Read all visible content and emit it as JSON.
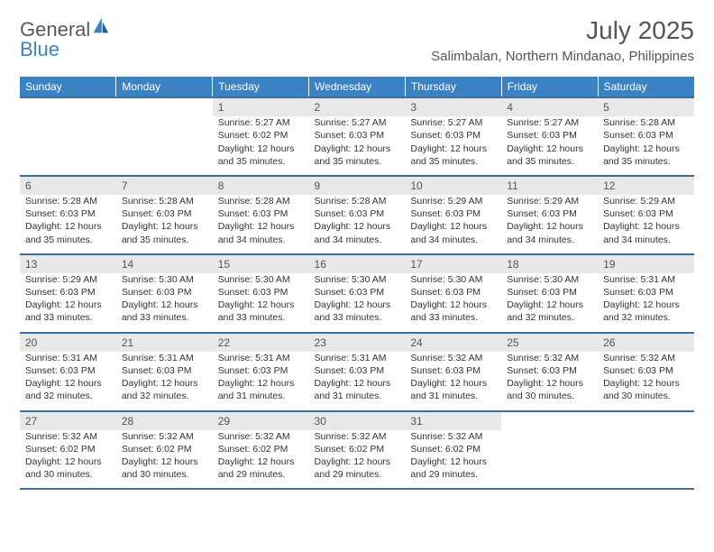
{
  "logo": {
    "text_general": "General",
    "text_blue": "Blue"
  },
  "title": "July 2025",
  "subtitle": "Salimbalan, Northern Mindanao, Philippines",
  "colors": {
    "header_bg": "#3b82c4",
    "header_text": "#ffffff",
    "daynum_bg": "#e8e8e8",
    "row_border": "#3b6fa0",
    "text": "#333333",
    "title_text": "#555555"
  },
  "day_headers": [
    "Sunday",
    "Monday",
    "Tuesday",
    "Wednesday",
    "Thursday",
    "Friday",
    "Saturday"
  ],
  "weeks": [
    [
      null,
      null,
      {
        "num": "1",
        "sunrise": "Sunrise: 5:27 AM",
        "sunset": "Sunset: 6:02 PM",
        "daylight": "Daylight: 12 hours and 35 minutes."
      },
      {
        "num": "2",
        "sunrise": "Sunrise: 5:27 AM",
        "sunset": "Sunset: 6:03 PM",
        "daylight": "Daylight: 12 hours and 35 minutes."
      },
      {
        "num": "3",
        "sunrise": "Sunrise: 5:27 AM",
        "sunset": "Sunset: 6:03 PM",
        "daylight": "Daylight: 12 hours and 35 minutes."
      },
      {
        "num": "4",
        "sunrise": "Sunrise: 5:27 AM",
        "sunset": "Sunset: 6:03 PM",
        "daylight": "Daylight: 12 hours and 35 minutes."
      },
      {
        "num": "5",
        "sunrise": "Sunrise: 5:28 AM",
        "sunset": "Sunset: 6:03 PM",
        "daylight": "Daylight: 12 hours and 35 minutes."
      }
    ],
    [
      {
        "num": "6",
        "sunrise": "Sunrise: 5:28 AM",
        "sunset": "Sunset: 6:03 PM",
        "daylight": "Daylight: 12 hours and 35 minutes."
      },
      {
        "num": "7",
        "sunrise": "Sunrise: 5:28 AM",
        "sunset": "Sunset: 6:03 PM",
        "daylight": "Daylight: 12 hours and 35 minutes."
      },
      {
        "num": "8",
        "sunrise": "Sunrise: 5:28 AM",
        "sunset": "Sunset: 6:03 PM",
        "daylight": "Daylight: 12 hours and 34 minutes."
      },
      {
        "num": "9",
        "sunrise": "Sunrise: 5:28 AM",
        "sunset": "Sunset: 6:03 PM",
        "daylight": "Daylight: 12 hours and 34 minutes."
      },
      {
        "num": "10",
        "sunrise": "Sunrise: 5:29 AM",
        "sunset": "Sunset: 6:03 PM",
        "daylight": "Daylight: 12 hours and 34 minutes."
      },
      {
        "num": "11",
        "sunrise": "Sunrise: 5:29 AM",
        "sunset": "Sunset: 6:03 PM",
        "daylight": "Daylight: 12 hours and 34 minutes."
      },
      {
        "num": "12",
        "sunrise": "Sunrise: 5:29 AM",
        "sunset": "Sunset: 6:03 PM",
        "daylight": "Daylight: 12 hours and 34 minutes."
      }
    ],
    [
      {
        "num": "13",
        "sunrise": "Sunrise: 5:29 AM",
        "sunset": "Sunset: 6:03 PM",
        "daylight": "Daylight: 12 hours and 33 minutes."
      },
      {
        "num": "14",
        "sunrise": "Sunrise: 5:30 AM",
        "sunset": "Sunset: 6:03 PM",
        "daylight": "Daylight: 12 hours and 33 minutes."
      },
      {
        "num": "15",
        "sunrise": "Sunrise: 5:30 AM",
        "sunset": "Sunset: 6:03 PM",
        "daylight": "Daylight: 12 hours and 33 minutes."
      },
      {
        "num": "16",
        "sunrise": "Sunrise: 5:30 AM",
        "sunset": "Sunset: 6:03 PM",
        "daylight": "Daylight: 12 hours and 33 minutes."
      },
      {
        "num": "17",
        "sunrise": "Sunrise: 5:30 AM",
        "sunset": "Sunset: 6:03 PM",
        "daylight": "Daylight: 12 hours and 33 minutes."
      },
      {
        "num": "18",
        "sunrise": "Sunrise: 5:30 AM",
        "sunset": "Sunset: 6:03 PM",
        "daylight": "Daylight: 12 hours and 32 minutes."
      },
      {
        "num": "19",
        "sunrise": "Sunrise: 5:31 AM",
        "sunset": "Sunset: 6:03 PM",
        "daylight": "Daylight: 12 hours and 32 minutes."
      }
    ],
    [
      {
        "num": "20",
        "sunrise": "Sunrise: 5:31 AM",
        "sunset": "Sunset: 6:03 PM",
        "daylight": "Daylight: 12 hours and 32 minutes."
      },
      {
        "num": "21",
        "sunrise": "Sunrise: 5:31 AM",
        "sunset": "Sunset: 6:03 PM",
        "daylight": "Daylight: 12 hours and 32 minutes."
      },
      {
        "num": "22",
        "sunrise": "Sunrise: 5:31 AM",
        "sunset": "Sunset: 6:03 PM",
        "daylight": "Daylight: 12 hours and 31 minutes."
      },
      {
        "num": "23",
        "sunrise": "Sunrise: 5:31 AM",
        "sunset": "Sunset: 6:03 PM",
        "daylight": "Daylight: 12 hours and 31 minutes."
      },
      {
        "num": "24",
        "sunrise": "Sunrise: 5:32 AM",
        "sunset": "Sunset: 6:03 PM",
        "daylight": "Daylight: 12 hours and 31 minutes."
      },
      {
        "num": "25",
        "sunrise": "Sunrise: 5:32 AM",
        "sunset": "Sunset: 6:03 PM",
        "daylight": "Daylight: 12 hours and 30 minutes."
      },
      {
        "num": "26",
        "sunrise": "Sunrise: 5:32 AM",
        "sunset": "Sunset: 6:03 PM",
        "daylight": "Daylight: 12 hours and 30 minutes."
      }
    ],
    [
      {
        "num": "27",
        "sunrise": "Sunrise: 5:32 AM",
        "sunset": "Sunset: 6:02 PM",
        "daylight": "Daylight: 12 hours and 30 minutes."
      },
      {
        "num": "28",
        "sunrise": "Sunrise: 5:32 AM",
        "sunset": "Sunset: 6:02 PM",
        "daylight": "Daylight: 12 hours and 30 minutes."
      },
      {
        "num": "29",
        "sunrise": "Sunrise: 5:32 AM",
        "sunset": "Sunset: 6:02 PM",
        "daylight": "Daylight: 12 hours and 29 minutes."
      },
      {
        "num": "30",
        "sunrise": "Sunrise: 5:32 AM",
        "sunset": "Sunset: 6:02 PM",
        "daylight": "Daylight: 12 hours and 29 minutes."
      },
      {
        "num": "31",
        "sunrise": "Sunrise: 5:32 AM",
        "sunset": "Sunset: 6:02 PM",
        "daylight": "Daylight: 12 hours and 29 minutes."
      },
      null,
      null
    ]
  ]
}
